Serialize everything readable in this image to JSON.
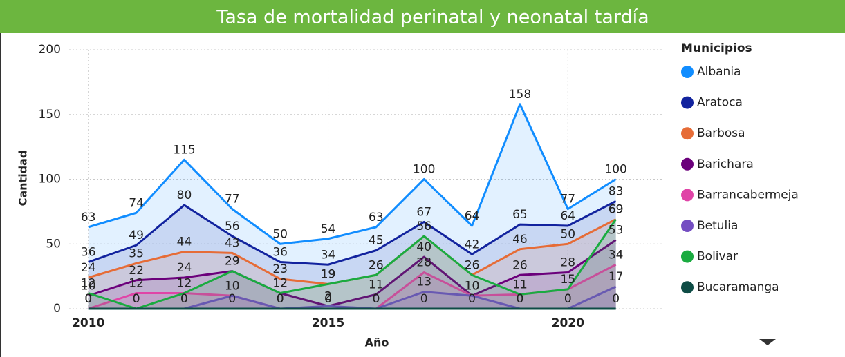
{
  "chart_data": {
    "type": "line",
    "title": "Tasa de mortalidad perinatal y neonatal tardía",
    "x_label": "Año",
    "y_label": "Cantidad",
    "legend_title": "Municipios",
    "x": [
      2010,
      2011,
      2012,
      2013,
      2014,
      2015,
      2016,
      2017,
      2018,
      2019,
      2020,
      2021
    ],
    "xlim": [
      2009.6,
      2022
    ],
    "xticks": [
      2010,
      2015,
      2020
    ],
    "ylim": [
      0,
      200
    ],
    "yticks": [
      0,
      50,
      100,
      150,
      200
    ],
    "grid": true,
    "area": true,
    "data_labels": true,
    "legend_position": "right",
    "series": [
      {
        "name": "Albania",
        "color": "#118DFF",
        "values": [
          63,
          74,
          115,
          77,
          50,
          54,
          63,
          100,
          64,
          158,
          77,
          100
        ]
      },
      {
        "name": "Aratoca",
        "color": "#12239E",
        "values": [
          36,
          49,
          80,
          56,
          36,
          34,
          45,
          67,
          42,
          65,
          64,
          83
        ]
      },
      {
        "name": "Barbosa",
        "color": "#E66C37",
        "values": [
          24,
          35,
          44,
          43,
          23,
          19,
          26,
          56,
          26,
          46,
          50,
          69
        ]
      },
      {
        "name": "Barichara",
        "color": "#6B007B",
        "values": [
          10,
          22,
          24,
          29,
          12,
          2,
          11,
          40,
          10,
          26,
          28,
          53
        ]
      },
      {
        "name": "Barrancabermeja",
        "color": "#E044A7",
        "values": [
          0,
          12,
          12,
          10,
          0,
          0,
          0,
          28,
          10,
          11,
          15,
          34
        ]
      },
      {
        "name": "Betulia",
        "color": "#744EC2",
        "values": [
          0,
          0,
          0,
          10,
          0,
          2,
          0,
          13,
          10,
          0,
          0,
          17
        ]
      },
      {
        "name": "Bolivar",
        "color": "#1AAB40",
        "values": [
          12,
          0,
          12,
          29,
          12,
          19,
          26,
          56,
          26,
          11,
          15,
          69
        ]
      },
      {
        "name": "Bucaramanga",
        "color": "#0E4C45",
        "values": [
          0,
          0,
          0,
          0,
          0,
          0,
          0,
          0,
          0,
          0,
          0,
          0
        ]
      }
    ]
  }
}
